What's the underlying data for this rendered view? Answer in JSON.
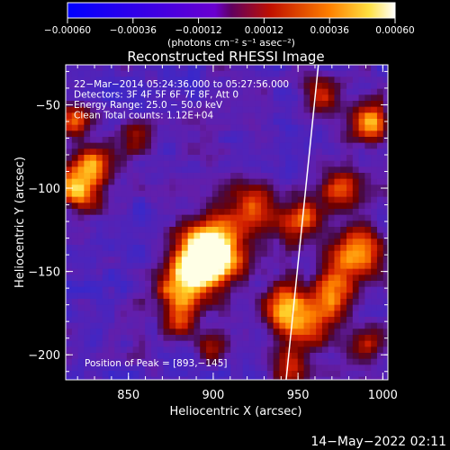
{
  "chart_data": {
    "type": "heatmap",
    "title": "Reconstructed RHESSI Image",
    "xlabel": "Heliocentric X (arcsec)",
    "ylabel": "Heliocentric Y (arcsec)",
    "xlim": [
      813,
      1003
    ],
    "ylim": [
      -215,
      -26
    ],
    "x_ticks": [
      850,
      900,
      950,
      1000
    ],
    "x_tick_labels": [
      "850",
      "900",
      "950",
      "1000"
    ],
    "y_ticks": [
      -50,
      -100,
      -150,
      -200
    ],
    "y_tick_labels": [
      "−50",
      "−100",
      "−150",
      "−200"
    ],
    "colorbar": {
      "range": [
        -0.0006,
        0.0006
      ],
      "ticks": [
        -0.0006,
        -0.00036,
        -0.00012,
        0.00012,
        0.00036,
        0.0006
      ],
      "tick_labels": [
        "−0.00060",
        "−0.00036",
        "−0.00012",
        "0.00012",
        "0.00036",
        "0.00060"
      ],
      "unit_label": "(photons cm⁻² s⁻¹ asec⁻²)"
    },
    "annotations": [
      "22−Mar−2014 05:24:36.000 to 05:27:56.000",
      "Detectors: 3F 4F 5F 6F 7F 8F, Att 0",
      "Energy Range: 25.0 − 50.0 keV",
      "Clean    Total counts: 1.12E+04"
    ],
    "peak_label": "Position of Peak = [893,−145]",
    "peak_position": [
      893,
      -145
    ],
    "limb_line": [
      [
        943,
        -215
      ],
      [
        962,
        -26
      ]
    ],
    "hotspots": [
      {
        "x": 900,
        "y": -135,
        "amp": 1.0,
        "sigma": 14
      },
      {
        "x": 893,
        "y": -145,
        "amp": 1.0,
        "sigma": 10
      },
      {
        "x": 880,
        "y": -162,
        "amp": 0.7,
        "sigma": 10
      },
      {
        "x": 925,
        "y": -110,
        "amp": 0.55,
        "sigma": 9
      },
      {
        "x": 950,
        "y": -120,
        "amp": 0.7,
        "sigma": 10
      },
      {
        "x": 940,
        "y": -170,
        "amp": 0.6,
        "sigma": 9
      },
      {
        "x": 955,
        "y": -180,
        "amp": 0.75,
        "sigma": 12
      },
      {
        "x": 945,
        "y": -210,
        "amp": 0.5,
        "sigma": 8
      },
      {
        "x": 975,
        "y": -100,
        "amp": 0.6,
        "sigma": 9
      },
      {
        "x": 985,
        "y": -140,
        "amp": 0.8,
        "sigma": 11
      },
      {
        "x": 970,
        "y": -160,
        "amp": 0.65,
        "sigma": 9
      },
      {
        "x": 992,
        "y": -60,
        "amp": 0.9,
        "sigma": 8
      },
      {
        "x": 965,
        "y": -45,
        "amp": 0.55,
        "sigma": 8
      },
      {
        "x": 820,
        "y": -100,
        "amp": 0.85,
        "sigma": 9
      },
      {
        "x": 830,
        "y": -85,
        "amp": 0.6,
        "sigma": 8
      },
      {
        "x": 818,
        "y": -60,
        "amp": 0.65,
        "sigma": 7
      },
      {
        "x": 855,
        "y": -70,
        "amp": 0.45,
        "sigma": 7
      },
      {
        "x": 880,
        "y": -180,
        "amp": 0.5,
        "sigma": 7
      },
      {
        "x": 900,
        "y": -195,
        "amp": 0.45,
        "sigma": 7
      },
      {
        "x": 990,
        "y": -195,
        "amp": 0.5,
        "sigma": 7
      }
    ]
  },
  "footer": {
    "timestamp": "14−May−2022 02:11"
  }
}
